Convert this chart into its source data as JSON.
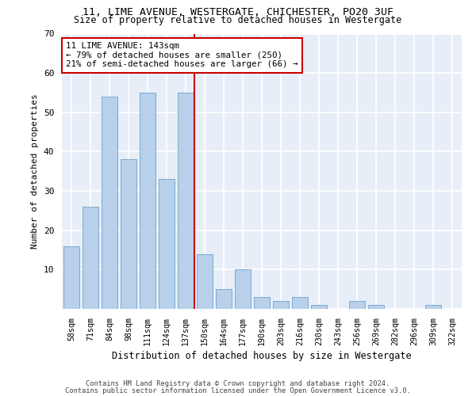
{
  "title_line1": "11, LIME AVENUE, WESTERGATE, CHICHESTER, PO20 3UF",
  "title_line2": "Size of property relative to detached houses in Westergate",
  "xlabel": "Distribution of detached houses by size in Westergate",
  "ylabel": "Number of detached properties",
  "categories": [
    "58sqm",
    "71sqm",
    "84sqm",
    "98sqm",
    "111sqm",
    "124sqm",
    "137sqm",
    "150sqm",
    "164sqm",
    "177sqm",
    "190sqm",
    "203sqm",
    "216sqm",
    "230sqm",
    "243sqm",
    "256sqm",
    "269sqm",
    "282sqm",
    "296sqm",
    "309sqm",
    "322sqm"
  ],
  "values": [
    16,
    26,
    54,
    38,
    55,
    33,
    55,
    14,
    5,
    10,
    3,
    2,
    3,
    1,
    0,
    2,
    1,
    0,
    0,
    1,
    0
  ],
  "bar_color": "#b8d0ea",
  "bar_edge_color": "#7aaad0",
  "vline_color": "#cc0000",
  "annotation_text": "11 LIME AVENUE: 143sqm\n← 79% of detached houses are smaller (250)\n21% of semi-detached houses are larger (66) →",
  "annotation_box_color": "#ffffff",
  "annotation_box_edge_color": "#cc0000",
  "ylim": [
    0,
    70
  ],
  "yticks": [
    0,
    10,
    20,
    30,
    40,
    50,
    60,
    70
  ],
  "background_color": "#e8eef8",
  "grid_color": "#ffffff",
  "footer_line1": "Contains HM Land Registry data © Crown copyright and database right 2024.",
  "footer_line2": "Contains public sector information licensed under the Open Government Licence v3.0."
}
